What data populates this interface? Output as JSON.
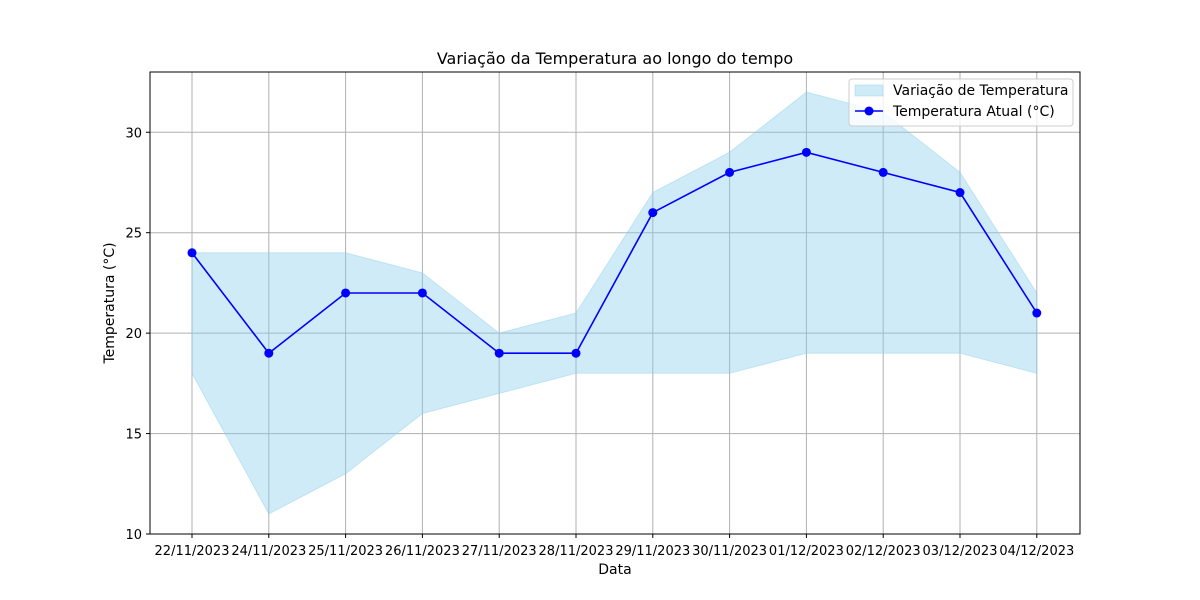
{
  "chart_data": {
    "type": "line",
    "title": "Variação da Temperatura ao longo do tempo",
    "xlabel": "Data",
    "ylabel": "Temperatura (°C)",
    "categories": [
      "22/11/2023",
      "24/11/2023",
      "25/11/2023",
      "26/11/2023",
      "27/11/2023",
      "28/11/2023",
      "29/11/2023",
      "30/11/2023",
      "01/12/2023",
      "02/12/2023",
      "03/12/2023",
      "04/12/2023"
    ],
    "ylim": [
      10,
      33
    ],
    "yticks": [
      10,
      15,
      20,
      25,
      30
    ],
    "grid": true,
    "legend_position": "top-right",
    "series": [
      {
        "name": "Temperatura Atual (°C)",
        "kind": "line-marker",
        "color": "#0000ff",
        "values": [
          24,
          19,
          22,
          22,
          19,
          19,
          26,
          28,
          29,
          28,
          27,
          21
        ]
      }
    ],
    "band": {
      "name": "Variação de Temperatura",
      "color": "#87ceeb",
      "lower": [
        18,
        11,
        13,
        16,
        17,
        18,
        18,
        18,
        19,
        19,
        19,
        18
      ],
      "upper": [
        24,
        24,
        24,
        23,
        20,
        21,
        27,
        29,
        32,
        31,
        28,
        22
      ]
    }
  }
}
